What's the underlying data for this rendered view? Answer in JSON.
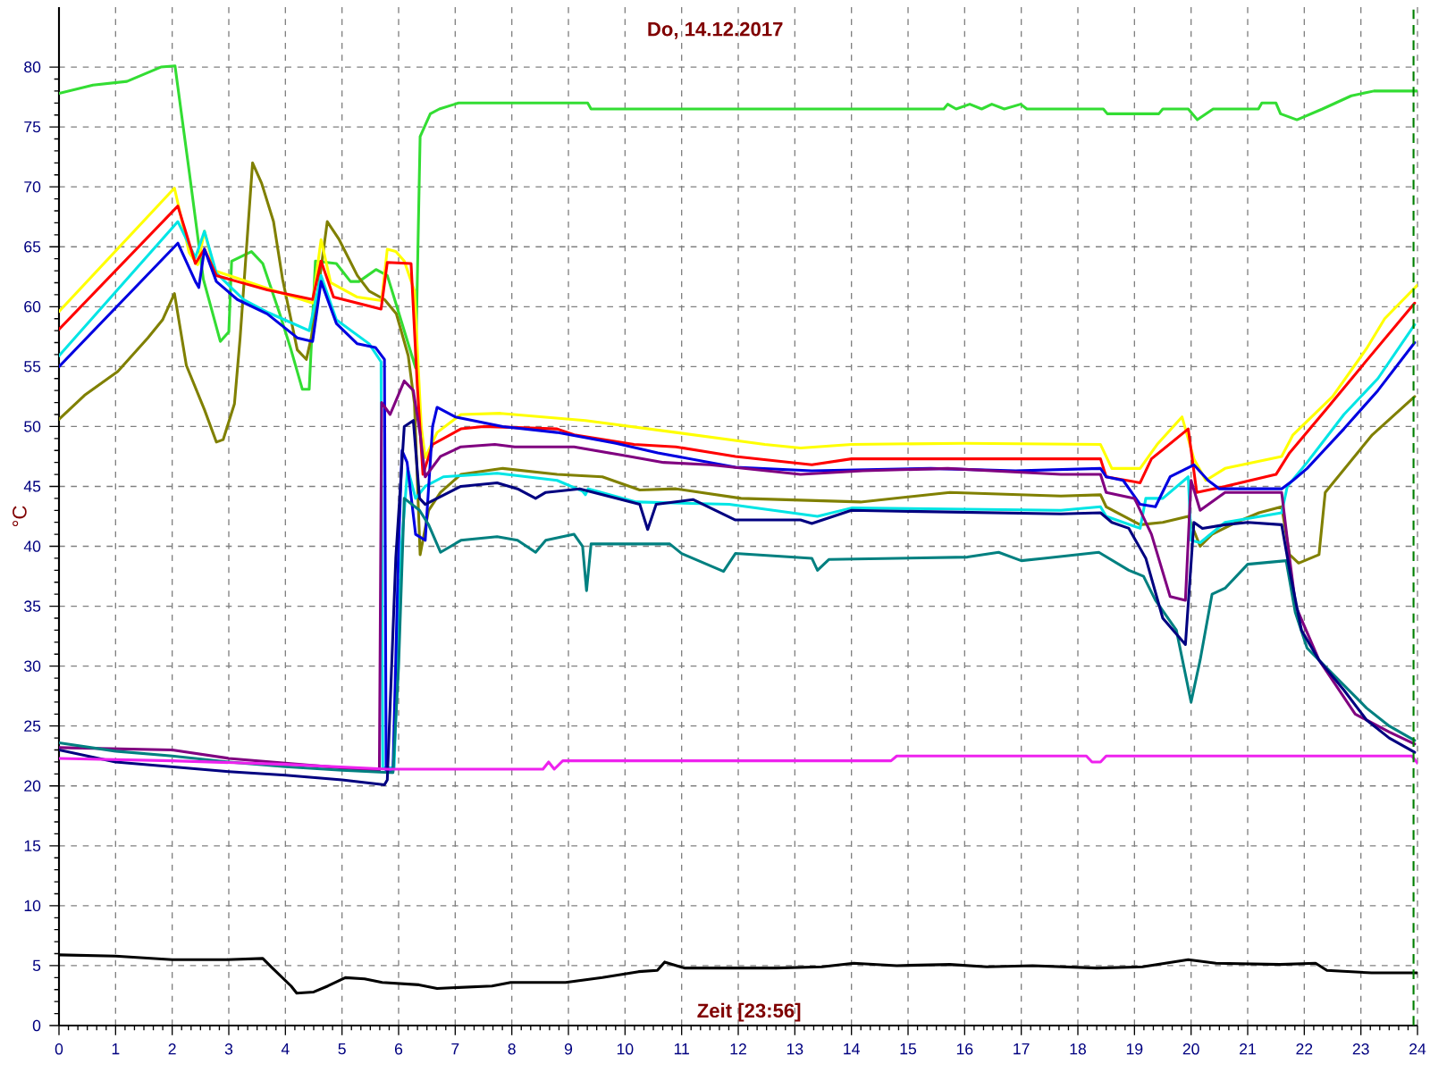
{
  "chart_data": {
    "type": "line",
    "title": "Do, 14.12.2017",
    "xlabel": "Zeit [23:56]",
    "ylabel": "°C",
    "xlim": [
      0,
      24
    ],
    "ylim": [
      0,
      85
    ],
    "xticks": [
      0,
      1,
      2,
      3,
      4,
      5,
      6,
      7,
      8,
      9,
      10,
      11,
      12,
      13,
      14,
      15,
      16,
      17,
      18,
      19,
      20,
      21,
      22,
      23,
      24
    ],
    "yticks": [
      0,
      5,
      10,
      15,
      20,
      25,
      30,
      35,
      40,
      45,
      50,
      55,
      60,
      65,
      70,
      75,
      80
    ],
    "grid": true,
    "ref_lines": [
      {
        "axis": "x",
        "value": 23.93,
        "color": "#008000",
        "line_style": "dashed"
      }
    ],
    "series": [
      {
        "color": "#33dd33",
        "x": [
          0,
          0.6,
          1.2,
          1.5,
          1.8,
          2.05,
          2.3,
          2.55,
          2.85,
          3.0,
          3.05,
          3.4,
          3.6,
          3.9,
          4.1,
          4.3,
          4.42,
          4.53,
          4.9,
          5.15,
          5.3,
          5.6,
          5.8,
          5.95,
          6.3,
          6.38,
          6.56,
          6.72,
          7.06,
          9.34,
          9.4,
          15.63,
          15.7,
          15.85,
          16.09,
          16.3,
          16.48,
          16.7,
          16.99,
          17.1,
          18.45,
          18.52,
          19.43,
          19.5,
          19.95,
          20.11,
          20.39,
          21.19,
          21.25,
          21.5,
          21.58,
          21.87,
          22.32,
          22.83,
          23.23,
          24
        ],
        "values": [
          77.8,
          78.5,
          78.8,
          79.4,
          80.0,
          80.1,
          71.3,
          62.3,
          57.1,
          57.9,
          63.8,
          64.6,
          63.6,
          59.4,
          56.4,
          53.1,
          53.1,
          63.8,
          63.6,
          62.1,
          62.1,
          63.1,
          62.6,
          60.3,
          54.9,
          74.2,
          76.1,
          76.5,
          77.0,
          77.0,
          76.5,
          76.5,
          76.9,
          76.5,
          76.9,
          76.5,
          76.9,
          76.5,
          76.9,
          76.5,
          76.5,
          76.1,
          76.1,
          76.5,
          76.5,
          75.6,
          76.5,
          76.5,
          77.0,
          77.0,
          76.1,
          75.6,
          76.5,
          77.6,
          78.0,
          78.0
        ]
      },
      {
        "color": "#808000",
        "x": [
          0,
          0.45,
          1.04,
          1.57,
          1.83,
          2.04,
          2.25,
          2.57,
          2.78,
          2.9,
          3.1,
          3.2,
          3.42,
          3.58,
          3.79,
          3.95,
          4.21,
          4.37,
          4.48,
          4.74,
          4.95,
          5.27,
          5.48,
          5.75,
          5.96,
          6.17,
          6.28,
          6.38,
          6.53,
          6.74,
          7.1,
          7.84,
          8.8,
          9.6,
          10.26,
          10.9,
          12.05,
          14.16,
          15.74,
          17.7,
          18.4,
          18.5,
          19.1,
          19.5,
          19.95,
          20.16,
          20.37,
          20.8,
          21.2,
          21.6,
          21.74,
          21.9,
          22.26,
          22.37,
          23.2,
          23.95
        ],
        "values": [
          50.6,
          52.6,
          54.6,
          57.4,
          58.9,
          61.1,
          55.1,
          51.4,
          48.7,
          48.9,
          51.9,
          57.4,
          72.0,
          70.3,
          67.1,
          62.3,
          56.4,
          55.6,
          57.9,
          67.1,
          65.6,
          62.6,
          61.3,
          60.6,
          59.4,
          55.9,
          51.9,
          39.3,
          43.0,
          44.5,
          46.0,
          46.5,
          46.0,
          45.8,
          44.7,
          44.8,
          44.0,
          43.7,
          44.5,
          44.2,
          44.3,
          43.3,
          41.8,
          42.0,
          42.5,
          40.0,
          41.0,
          42.0,
          42.8,
          43.3,
          39.3,
          38.6,
          39.3,
          44.5,
          49.3,
          52.5
        ]
      },
      {
        "color": "#ffff00",
        "x": [
          0,
          2.04,
          2.3,
          2.45,
          2.57,
          2.75,
          3.2,
          3.7,
          4.48,
          4.63,
          4.8,
          5.27,
          5.7,
          5.8,
          5.95,
          6.1,
          6.28,
          6.4,
          6.47,
          6.68,
          7.1,
          7.8,
          9.3,
          10.9,
          12.47,
          13.1,
          14.0,
          16.0,
          18.4,
          18.6,
          19.1,
          19.4,
          19.84,
          20.05,
          20.26,
          20.6,
          21.6,
          21.8,
          22.5,
          23.1,
          23.42,
          24
        ],
        "values": [
          59.6,
          69.9,
          64.5,
          63.5,
          66.3,
          63.0,
          62.3,
          61.5,
          60.3,
          65.6,
          62.0,
          60.8,
          60.5,
          64.8,
          64.6,
          63.8,
          61.3,
          50.0,
          47.4,
          49.5,
          51.0,
          51.1,
          50.5,
          49.5,
          48.5,
          48.2,
          48.5,
          48.6,
          48.5,
          46.5,
          46.5,
          48.5,
          50.8,
          47.3,
          45.5,
          46.5,
          47.5,
          49.3,
          52.5,
          56.5,
          59.0,
          61.8
        ]
      },
      {
        "color": "#00e5e5",
        "x": [
          0,
          2.1,
          2.41,
          2.57,
          2.78,
          3.26,
          3.7,
          4.42,
          4.63,
          4.9,
          5.48,
          5.69,
          5.72,
          5.92,
          6.05,
          6.16,
          6.3,
          6.47,
          6.79,
          7.74,
          8.8,
          9.25,
          9.3,
          9.35,
          10.2,
          11.84,
          13.4,
          14.0,
          17.7,
          18.4,
          18.5,
          19.1,
          19.2,
          19.5,
          19.95,
          20.0,
          20.16,
          20.6,
          21.6,
          21.7,
          22.05,
          22.7,
          23.3,
          23.95
        ],
        "values": [
          55.9,
          67.1,
          64.1,
          66.3,
          62.8,
          60.6,
          59.5,
          58.0,
          62.6,
          58.9,
          56.9,
          55.4,
          21.5,
          21.5,
          40.0,
          46.5,
          44.0,
          45.0,
          45.8,
          46.1,
          45.5,
          44.6,
          44.3,
          44.8,
          43.7,
          43.5,
          42.5,
          43.2,
          43.0,
          43.3,
          42.5,
          41.5,
          44.0,
          44.0,
          45.8,
          40.5,
          40.3,
          42.0,
          42.8,
          45.0,
          47.0,
          51.0,
          54.0,
          58.5
        ]
      },
      {
        "color": "#ff0000",
        "x": [
          0,
          2.1,
          2.41,
          2.57,
          2.78,
          3.15,
          3.68,
          4.48,
          4.63,
          4.85,
          5.27,
          5.69,
          5.8,
          6.22,
          6.33,
          6.43,
          6.6,
          7.1,
          7.5,
          8.8,
          9.1,
          10.16,
          10.9,
          11.95,
          13.3,
          14.0,
          18.4,
          18.5,
          19.1,
          19.3,
          19.95,
          20.1,
          20.6,
          21.5,
          21.74,
          22.4,
          23.1,
          23.95
        ],
        "values": [
          58.1,
          68.4,
          63.6,
          64.8,
          62.6,
          62.1,
          61.4,
          60.6,
          63.8,
          60.8,
          60.3,
          59.8,
          63.7,
          63.6,
          53.4,
          46.0,
          48.5,
          49.8,
          50.0,
          49.8,
          49.3,
          48.5,
          48.3,
          47.5,
          46.8,
          47.3,
          47.3,
          45.8,
          45.3,
          47.3,
          49.8,
          44.5,
          45.0,
          46.0,
          47.8,
          51.5,
          55.5,
          60.3
        ]
      },
      {
        "color": "#0000e0",
        "x": [
          0,
          2.1,
          2.41,
          2.47,
          2.57,
          2.78,
          3.15,
          3.68,
          4.21,
          4.48,
          4.63,
          4.9,
          5.27,
          5.59,
          5.75,
          5.78,
          5.9,
          6.0,
          6.06,
          6.15,
          6.3,
          6.47,
          6.6,
          6.68,
          7.0,
          7.84,
          8.8,
          9.84,
          10.58,
          11.95,
          13.3,
          15.4,
          16.9,
          18.4,
          18.5,
          18.8,
          19.1,
          19.37,
          19.63,
          20.05,
          20.3,
          20.5,
          21.6,
          21.8,
          22.05,
          22.7,
          23.3,
          23.95
        ],
        "values": [
          55.0,
          65.3,
          62.1,
          61.6,
          64.8,
          62.1,
          60.6,
          59.4,
          57.4,
          57.1,
          62.1,
          58.6,
          56.9,
          56.6,
          55.6,
          21.2,
          21.2,
          40.0,
          48.0,
          47.0,
          41.0,
          40.5,
          50.0,
          51.6,
          50.8,
          50.0,
          49.5,
          48.6,
          47.8,
          46.6,
          46.3,
          46.5,
          46.3,
          46.5,
          45.8,
          45.5,
          43.5,
          43.3,
          45.8,
          46.8,
          45.5,
          44.8,
          44.8,
          45.5,
          46.5,
          49.8,
          53.0,
          57.0
        ]
      },
      {
        "color": "#800080",
        "x": [
          0,
          2,
          3,
          4,
          5,
          5.66,
          5.7,
          5.85,
          6.1,
          6.26,
          6.38,
          6.47,
          6.74,
          7.1,
          7.7,
          8.05,
          9.1,
          9.95,
          10.68,
          11.5,
          13.1,
          14.2,
          15.7,
          17.7,
          18.4,
          18.5,
          19.0,
          19.3,
          19.63,
          19.9,
          20.0,
          20.16,
          20.6,
          21.6,
          21.74,
          21.85,
          22.26,
          22.9,
          23.5,
          23.95
        ],
        "values": [
          23.2,
          23.0,
          22.3,
          21.9,
          21.5,
          21.3,
          52.0,
          51.0,
          53.8,
          53.0,
          49.4,
          45.8,
          47.5,
          48.3,
          48.5,
          48.3,
          48.3,
          47.6,
          47.0,
          46.8,
          46.0,
          46.3,
          46.5,
          46.0,
          46.0,
          44.5,
          44.0,
          41.0,
          35.8,
          35.5,
          45.5,
          43.0,
          44.5,
          44.5,
          39.0,
          35.0,
          30.5,
          26.0,
          24.5,
          23.5
        ]
      },
      {
        "color": "#008080",
        "x": [
          0,
          1,
          2,
          3,
          4,
          5,
          5.9,
          6.0,
          6.1,
          6.37,
          6.53,
          6.74,
          7.1,
          7.74,
          8.1,
          8.42,
          8.6,
          9.1,
          9.25,
          9.32,
          9.4,
          10.79,
          11.0,
          11.74,
          11.95,
          13.3,
          13.4,
          13.6,
          16.05,
          16.6,
          17.0,
          17.4,
          18.37,
          18.9,
          19.16,
          19.37,
          19.74,
          20.0,
          20.16,
          20.37,
          20.6,
          21.0,
          21.68,
          21.84,
          22.05,
          22.47,
          23.1,
          23.5,
          23.95
        ],
        "values": [
          23.6,
          22.9,
          22.5,
          22.0,
          21.6,
          21.3,
          21.1,
          30.0,
          44.0,
          43.0,
          41.8,
          39.5,
          40.5,
          40.8,
          40.5,
          39.5,
          40.5,
          41.0,
          40.0,
          36.3,
          40.2,
          40.2,
          39.4,
          37.9,
          39.4,
          39.0,
          38.0,
          38.9,
          39.1,
          39.5,
          38.8,
          39.0,
          39.5,
          38.0,
          37.5,
          35.5,
          33.0,
          27.0,
          30.5,
          36.0,
          36.5,
          38.5,
          38.8,
          34.5,
          31.5,
          29.5,
          26.5,
          25.0,
          23.8
        ]
      },
      {
        "color": "#000080",
        "x": [
          0,
          1,
          2,
          3,
          4,
          5,
          5.75,
          5.8,
          5.95,
          6.1,
          6.26,
          6.37,
          6.47,
          6.68,
          7.1,
          7.74,
          8.1,
          8.42,
          8.6,
          9.2,
          10.26,
          10.4,
          10.55,
          11.2,
          11.95,
          13.1,
          13.3,
          14.0,
          17.7,
          18.4,
          18.6,
          18.9,
          19.2,
          19.5,
          19.9,
          20.05,
          20.2,
          20.6,
          21.0,
          21.6,
          21.76,
          21.95,
          22.26,
          22.7,
          23.1,
          23.5,
          23.95
        ],
        "values": [
          23.0,
          22.0,
          21.6,
          21.2,
          20.9,
          20.5,
          20.1,
          20.5,
          39.0,
          50.0,
          50.5,
          44.0,
          43.5,
          44.0,
          45.0,
          45.3,
          44.8,
          44.0,
          44.5,
          44.8,
          43.5,
          41.4,
          43.5,
          43.9,
          42.2,
          42.2,
          41.9,
          43.0,
          42.7,
          42.8,
          42.0,
          41.5,
          39.0,
          34.0,
          31.8,
          42.0,
          41.5,
          41.8,
          42.0,
          41.8,
          37.5,
          33.0,
          30.5,
          28.0,
          25.5,
          24.0,
          22.8
        ]
      },
      {
        "color": "#ee22ee",
        "x": [
          0,
          2,
          4,
          5.8,
          8.55,
          8.65,
          8.75,
          8.9,
          14.7,
          14.8,
          18.15,
          18.25,
          18.4,
          18.5,
          23.9,
          24
        ],
        "values": [
          22.3,
          22.1,
          21.8,
          21.4,
          21.4,
          22.0,
          21.4,
          22.1,
          22.1,
          22.5,
          22.5,
          22.0,
          22.0,
          22.5,
          22.5,
          21.9
        ]
      },
      {
        "color": "#000000",
        "x": [
          0,
          1,
          2,
          2.96,
          3.6,
          3.77,
          4.1,
          4.2,
          4.5,
          4.75,
          5.06,
          5.4,
          5.71,
          6.36,
          6.68,
          7.65,
          7.98,
          8.95,
          9.6,
          10.24,
          10.57,
          10.7,
          11.05,
          12.67,
          13.48,
          14.04,
          14.8,
          15.74,
          16.39,
          17.2,
          18.33,
          19.14,
          19.95,
          20.44,
          21.57,
          22.2,
          22.4,
          23.19,
          24
        ],
        "values": [
          5.9,
          5.8,
          5.5,
          5.5,
          5.6,
          4.8,
          3.3,
          2.7,
          2.8,
          3.3,
          4.0,
          3.9,
          3.6,
          3.4,
          3.1,
          3.3,
          3.6,
          3.6,
          4.0,
          4.5,
          4.6,
          5.3,
          4.8,
          4.8,
          4.9,
          5.2,
          5.0,
          5.1,
          4.9,
          5.0,
          4.8,
          4.9,
          5.5,
          5.2,
          5.1,
          5.2,
          4.6,
          4.4,
          4.4
        ]
      }
    ]
  }
}
